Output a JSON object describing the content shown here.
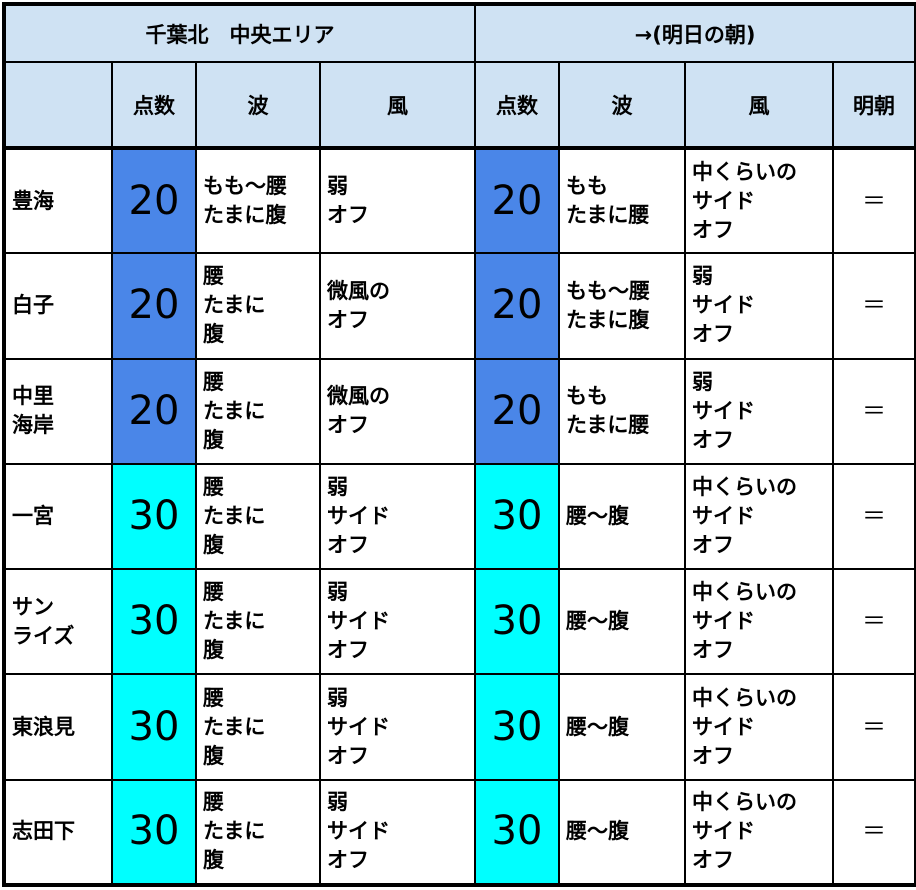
{
  "colors": {
    "header": "#cfe2f3",
    "score_20": "#4a86e8",
    "score_30": "#00ffff"
  },
  "header": {
    "today_area": "千葉北　中央エリア",
    "tomorrow": "→(明日の朝)"
  },
  "columns": {
    "score": "点数",
    "wave": "波",
    "wind": "風",
    "tomorrow_morning": "明朝"
  },
  "rows": [
    {
      "spot": "豊海",
      "score": "20",
      "wave": "もも～腰\nたまに腹",
      "wind": "弱\nオフ",
      "t_score": "20",
      "t_wave": "もも\nたまに腰",
      "t_wind": "中くらいの\nサイド\nオフ",
      "trend": "＝"
    },
    {
      "spot": "白子",
      "score": "20",
      "wave": "腰\nたまに\n腹",
      "wind": "微風の\nオフ",
      "t_score": "20",
      "t_wave": "もも～腰\nたまに腹",
      "t_wind": "弱\nサイド\nオフ",
      "trend": "＝"
    },
    {
      "spot": "中里\n海岸",
      "score": "20",
      "wave": "腰\nたまに\n腹",
      "wind": "微風の\nオフ",
      "t_score": "20",
      "t_wave": "もも\nたまに腰",
      "t_wind": "弱\nサイド\nオフ",
      "trend": "＝"
    },
    {
      "spot": "一宮",
      "score": "30",
      "wave": "腰\nたまに\n腹",
      "wind": "弱\nサイド\nオフ",
      "t_score": "30",
      "t_wave": "腰～腹",
      "t_wind": "中くらいの\nサイド\nオフ",
      "trend": "＝"
    },
    {
      "spot": "サン\nライズ",
      "score": "30",
      "wave": "腰\nたまに\n腹",
      "wind": "弱\nサイド\nオフ",
      "t_score": "30",
      "t_wave": "腰～腹",
      "t_wind": "中くらいの\nサイド\nオフ",
      "trend": "＝"
    },
    {
      "spot": "東浪見",
      "score": "30",
      "wave": "腰\nたまに\n腹",
      "wind": "弱\nサイド\nオフ",
      "t_score": "30",
      "t_wave": "腰～腹",
      "t_wind": "中くらいの\nサイド\nオフ",
      "trend": "＝"
    },
    {
      "spot": "志田下",
      "score": "30",
      "wave": "腰\nたまに\n腹",
      "wind": "弱\nサイド\nオフ",
      "t_score": "30",
      "t_wave": "腰～腹",
      "t_wind": "中くらいの\nサイド\nオフ",
      "trend": "＝"
    }
  ]
}
